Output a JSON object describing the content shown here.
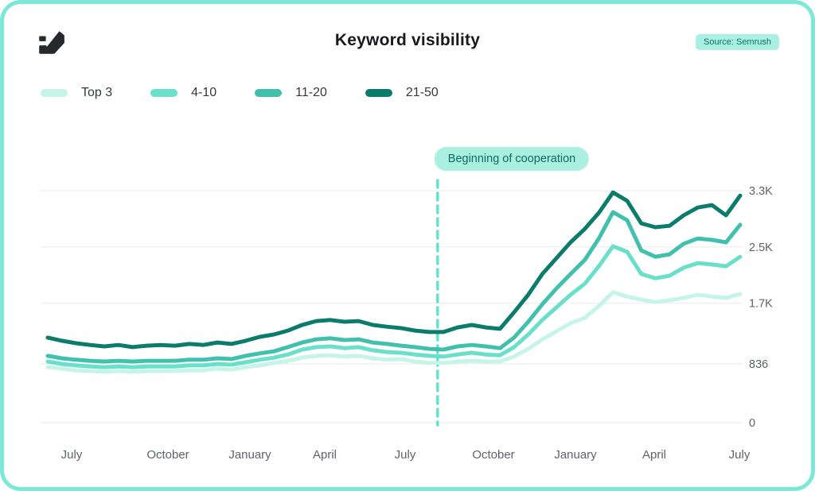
{
  "header": {
    "title": "Keyword visibility",
    "source_badge": "Source: Semrush"
  },
  "legend": {
    "items": [
      {
        "label": "Top 3"
      },
      {
        "label": "4-10"
      },
      {
        "label": "11-20"
      },
      {
        "label": "21-50"
      }
    ]
  },
  "annotation": {
    "label": "Beginning of cooperation"
  },
  "colors": {
    "card_border": "#7de8d8",
    "badge_bg": "#a9f0e2",
    "badge_text": "#0c6e5f",
    "gridline": "#f0f0f0",
    "tick_text": "#5f6368",
    "annotation_line": "#63e2d0"
  },
  "chart_data": {
    "type": "line",
    "title": "Keyword visibility",
    "xlabel": "",
    "ylabel": "",
    "x_tick_labels": [
      "July",
      "October",
      "January",
      "April",
      "July",
      "October",
      "January",
      "April",
      "July"
    ],
    "y_ticks": [
      {
        "label": "0",
        "value": 0
      },
      {
        "label": "836",
        "value": 836
      },
      {
        "label": "1.7K",
        "value": 1700
      },
      {
        "label": "2.5K",
        "value": 2500
      },
      {
        "label": "3.3K",
        "value": 3300
      }
    ],
    "ylim": [
      0,
      3300
    ],
    "grid": true,
    "legend_position": "top-left",
    "annotation_label": "Beginning of cooperation",
    "annotation_x_fraction": 0.563,
    "series": [
      {
        "name": "Top 3",
        "color": "#c7f4e8",
        "values": [
          790,
          770,
          745,
          735,
          725,
          735,
          725,
          735,
          735,
          735,
          745,
          745,
          770,
          755,
          790,
          815,
          850,
          880,
          925,
          950,
          960,
          940,
          950,
          915,
          895,
          905,
          870,
          850,
          850,
          870,
          880,
          870,
          870,
          940,
          1050,
          1185,
          1300,
          1415,
          1490,
          1660,
          1855,
          1795,
          1750,
          1715,
          1740,
          1775,
          1820,
          1795,
          1775,
          1830
        ]
      },
      {
        "name": "4-10",
        "color": "#6adfca",
        "values": [
          870,
          835,
          815,
          800,
          790,
          800,
          790,
          800,
          800,
          800,
          815,
          815,
          835,
          825,
          860,
          895,
          925,
          970,
          1040,
          1075,
          1085,
          1060,
          1075,
          1030,
          1005,
          995,
          970,
          950,
          940,
          970,
          995,
          970,
          960,
          1075,
          1255,
          1460,
          1640,
          1820,
          1975,
          2225,
          2510,
          2430,
          2115,
          2055,
          2090,
          2205,
          2270,
          2250,
          2225,
          2360
        ]
      },
      {
        "name": "11-20",
        "color": "#41c1ad",
        "values": [
          950,
          915,
          895,
          880,
          870,
          880,
          870,
          880,
          880,
          880,
          895,
          895,
          915,
          905,
          950,
          985,
          1015,
          1075,
          1140,
          1185,
          1200,
          1175,
          1185,
          1140,
          1120,
          1095,
          1075,
          1050,
          1040,
          1085,
          1105,
          1085,
          1060,
          1210,
          1435,
          1685,
          1910,
          2115,
          2315,
          2620,
          2995,
          2880,
          2450,
          2360,
          2395,
          2545,
          2620,
          2600,
          2565,
          2815
        ]
      },
      {
        "name": "21-50",
        "color": "#0b7c6c",
        "values": [
          1210,
          1165,
          1130,
          1105,
          1085,
          1105,
          1075,
          1095,
          1105,
          1095,
          1120,
          1105,
          1140,
          1120,
          1165,
          1220,
          1255,
          1310,
          1390,
          1445,
          1460,
          1435,
          1445,
          1390,
          1365,
          1345,
          1310,
          1290,
          1290,
          1355,
          1390,
          1355,
          1335,
          1570,
          1820,
          2115,
          2340,
          2565,
          2755,
          2985,
          3275,
          3155,
          2835,
          2780,
          2800,
          2950,
          3060,
          3095,
          2950,
          3230
        ]
      }
    ]
  }
}
